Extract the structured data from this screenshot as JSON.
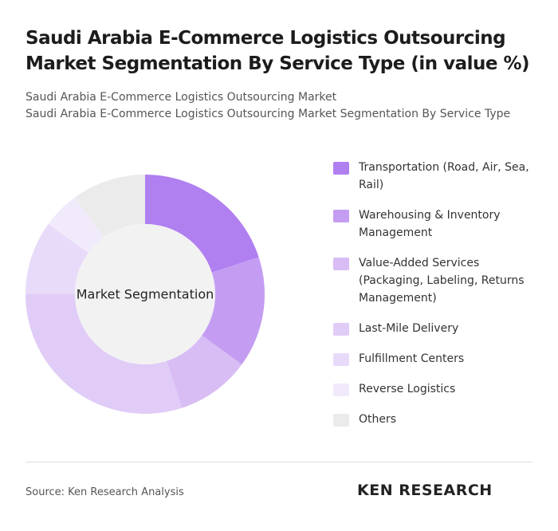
{
  "chart_data": {
    "type": "donut",
    "title": "Saudi Arabia E-Commerce Logistics Outsourcing Market Segmentation By Service Type (in value %)",
    "subtitle": [
      "Saudi Arabia E-Commerce Logistics Outsourcing Market",
      "Saudi Arabia E-Commerce Logistics Outsourcing Market Segmentation By Service Type"
    ],
    "center_label": "Market Segmentation",
    "categories": [
      "Transportation (Road, Air, Sea, Rail)",
      "Warehousing & Inventory Management",
      "Value-Added Services (Packaging, Labeling, Returns Management)",
      "Last-Mile Delivery",
      "Fulfillment Centers",
      "Reverse Logistics",
      "Others"
    ],
    "values": [
      20,
      15,
      10,
      30,
      10,
      5,
      10
    ],
    "colors": [
      "#b07ff0",
      "#c49df2",
      "#d8bdf5",
      "#e0ccf7",
      "#e8dbf9",
      "#f1eafb",
      "#ebebeb"
    ]
  },
  "footer": {
    "source": "Source: Ken Research Analysis",
    "brand": "KEN RESEARCH"
  }
}
